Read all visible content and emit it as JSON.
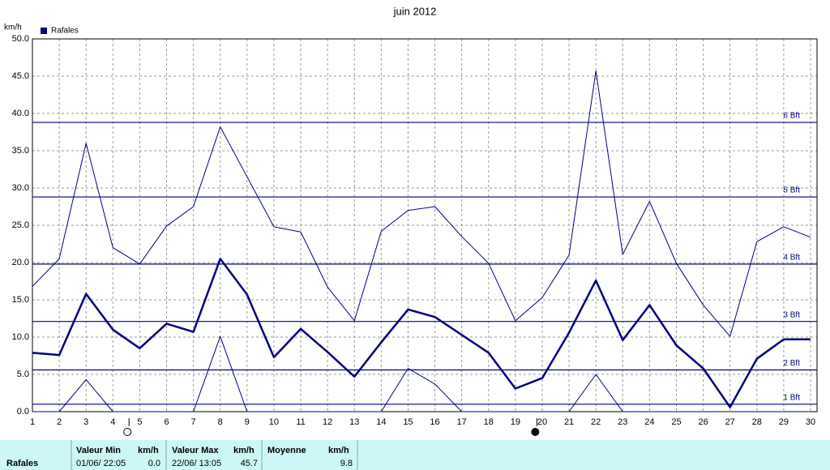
{
  "chart_data": {
    "type": "line",
    "title": "juin 2012",
    "y_label": "km/h",
    "x": [
      1,
      2,
      3,
      4,
      5,
      6,
      7,
      8,
      9,
      10,
      11,
      12,
      13,
      14,
      15,
      16,
      17,
      18,
      19,
      20,
      21,
      22,
      23,
      24,
      25,
      26,
      27,
      28,
      29,
      30
    ],
    "xlim": [
      1,
      30
    ],
    "xticks": [
      1,
      2,
      3,
      4,
      5,
      6,
      7,
      8,
      9,
      10,
      11,
      12,
      13,
      14,
      15,
      16,
      17,
      18,
      19,
      20,
      21,
      22,
      23,
      24,
      25,
      26,
      27,
      28,
      29,
      30
    ],
    "ylim": [
      0,
      50
    ],
    "yticks": [
      {
        "value": 0,
        "label": "0.0"
      },
      {
        "value": 5,
        "label": "5.0"
      },
      {
        "value": 10,
        "label": "10.0"
      },
      {
        "value": 15,
        "label": "15.0"
      },
      {
        "value": 20,
        "label": "20.0"
      },
      {
        "value": 25,
        "label": "25.0"
      },
      {
        "value": 30,
        "label": "30.0"
      },
      {
        "value": 35,
        "label": "35.0"
      },
      {
        "value": 40,
        "label": "40.0"
      },
      {
        "value": 45,
        "label": "45.0"
      },
      {
        "value": 50,
        "label": "50.0"
      }
    ],
    "grid": true,
    "legend": "top-left",
    "series": [
      {
        "name": "Rafales",
        "color": "#000080",
        "values": [
          7.9,
          7.6,
          15.8,
          11.0,
          8.5,
          11.8,
          10.7,
          20.5,
          15.7,
          7.3,
          11.1,
          8.0,
          4.7,
          9.3,
          13.7,
          12.7,
          10.3,
          7.9,
          3.1,
          4.5,
          10.6,
          17.6,
          9.6,
          14.3,
          8.9,
          5.8,
          0.6,
          7.1,
          9.7,
          9.7
        ],
        "max": [
          16.8,
          20.5,
          36.0,
          22.0,
          19.8,
          24.9,
          27.5,
          38.2,
          31.5,
          24.8,
          24.1,
          16.7,
          12.2,
          24.2,
          27.0,
          27.5,
          23.5,
          19.9,
          12.2,
          15.3,
          21.0,
          45.7,
          21.1,
          28.2,
          19.9,
          14.3,
          10.1,
          22.8,
          24.8,
          23.4
        ],
        "min": [
          0,
          0,
          4.3,
          0,
          0,
          0,
          0,
          10.1,
          0,
          0,
          0,
          0,
          0,
          0,
          5.8,
          3.7,
          0,
          0,
          0,
          0,
          0,
          5.0,
          0,
          0,
          0,
          0,
          0,
          0,
          0,
          0
        ]
      }
    ],
    "reference_lines": [
      {
        "value": 38.8,
        "label": "6 Bft"
      },
      {
        "value": 28.8,
        "label": "5 Bft"
      },
      {
        "value": 19.8,
        "label": "4 Bft"
      },
      {
        "value": 12.1,
        "label": "3 Bft"
      },
      {
        "value": 5.6,
        "label": "2 Bft"
      },
      {
        "value": 1.0,
        "label": "1 Bft"
      }
    ],
    "moon_markers": [
      {
        "x": 4.6,
        "filled": false
      },
      {
        "x": 19.8,
        "filled": true
      }
    ]
  },
  "summary": {
    "label": "Rafales",
    "columns": [
      {
        "title": "Valeur Min",
        "unit": "km/h",
        "date": "01/06/ 22:05",
        "value": "0.0"
      },
      {
        "title": "Valeur Max",
        "unit": "km/h",
        "date": "22/06/ 13:05",
        "value": "45.7"
      },
      {
        "title": "Moyenne",
        "unit": "km/h",
        "value": "9.8"
      }
    ]
  }
}
